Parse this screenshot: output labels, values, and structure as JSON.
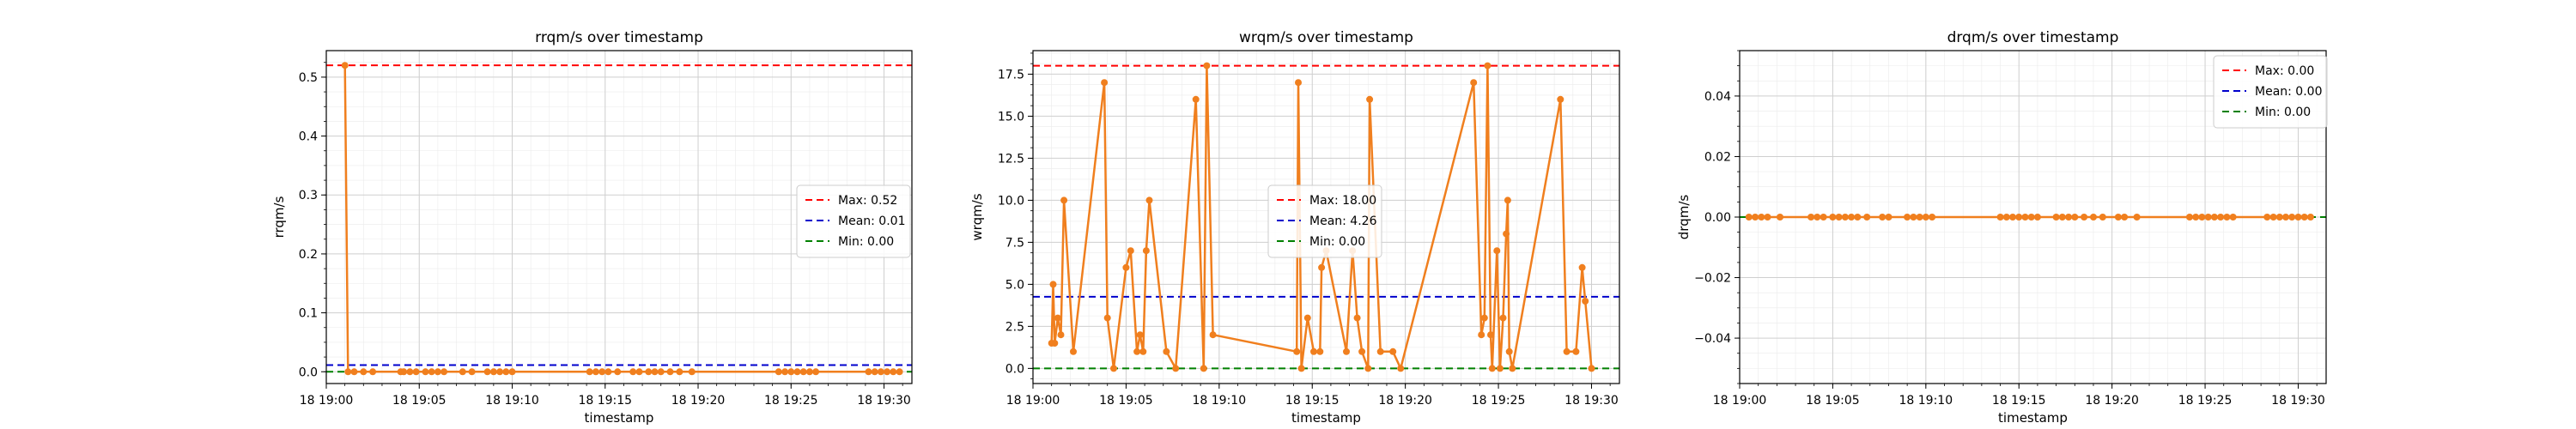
{
  "chart_data": [
    {
      "type": "line",
      "title": "rrqm/s over timestamp",
      "xlabel": "timestamp",
      "ylabel": "rrqm/s",
      "xlim": [
        "18 19:00:00",
        "18 19:31:30"
      ],
      "ylim": [
        -0.02,
        0.545
      ],
      "x_ticks": [
        {
          "t": "18 19:00:00",
          "label": "18 19:00"
        },
        {
          "t": "18 19:05:00",
          "label": "18 19:05"
        },
        {
          "t": "18 19:10:00",
          "label": "18 19:10"
        },
        {
          "t": "18 19:15:00",
          "label": "18 19:15"
        },
        {
          "t": "18 19:20:00",
          "label": "18 19:20"
        },
        {
          "t": "18 19:25:00",
          "label": "18 19:25"
        },
        {
          "t": "18 19:30:00",
          "label": "18 19:30"
        }
      ],
      "y_ticks": [
        {
          "v": 0.0,
          "label": "0.0"
        },
        {
          "v": 0.1,
          "label": "0.1"
        },
        {
          "v": 0.2,
          "label": "0.2"
        },
        {
          "v": 0.3,
          "label": "0.3"
        },
        {
          "v": 0.4,
          "label": "0.4"
        },
        {
          "v": 0.5,
          "label": "0.5"
        }
      ],
      "grid": true,
      "legend_position": "center-right",
      "series": [
        {
          "color": "#f07f1e",
          "x": [
            "18 19:01:00",
            "18 19:01:10",
            "18 19:01:30",
            "18 19:02:00",
            "18 19:02:30",
            "18 19:04:00",
            "18 19:04:10",
            "18 19:04:30",
            "18 19:04:50",
            "18 19:05:20",
            "18 19:05:40",
            "18 19:06:00",
            "18 19:06:20",
            "18 19:07:20",
            "18 19:07:50",
            "18 19:08:40",
            "18 19:09:00",
            "18 19:09:20",
            "18 19:09:40",
            "18 19:10:00",
            "18 19:14:10",
            "18 19:14:30",
            "18 19:14:50",
            "18 19:15:10",
            "18 19:15:40",
            "18 19:16:30",
            "18 19:16:50",
            "18 19:17:20",
            "18 19:17:40",
            "18 19:18:00",
            "18 19:18:30",
            "18 19:19:00",
            "18 19:19:40",
            "18 19:24:20",
            "18 19:24:40",
            "18 19:25:00",
            "18 19:25:20",
            "18 19:25:40",
            "18 19:26:00",
            "18 19:26:20",
            "18 19:29:10",
            "18 19:29:30",
            "18 19:29:50",
            "18 19:30:10",
            "18 19:30:30",
            "18 19:30:50"
          ],
          "y": [
            0.52,
            0,
            0,
            0,
            0,
            0,
            0,
            0,
            0,
            0,
            0,
            0,
            0,
            0,
            0,
            0,
            0,
            0,
            0,
            0,
            0,
            0,
            0,
            0,
            0,
            0,
            0,
            0,
            0,
            0,
            0,
            0,
            0,
            0,
            0,
            0,
            0,
            0,
            0,
            0,
            0,
            0,
            0,
            0,
            0,
            0
          ]
        }
      ],
      "reference_lines": [
        {
          "label": "Max: 0.52",
          "value": 0.52,
          "color": "#ff0000"
        },
        {
          "label": "Mean: 0.01",
          "value": 0.0113,
          "color": "#0000cc"
        },
        {
          "label": "Min: 0.00",
          "value": 0.0,
          "color": "#008000"
        }
      ]
    },
    {
      "type": "line",
      "title": "wrqm/s over timestamp",
      "xlabel": "timestamp",
      "ylabel": "wrqm/s",
      "xlim": [
        "18 19:00:00",
        "18 19:31:30"
      ],
      "ylim": [
        -0.9,
        18.9
      ],
      "x_ticks": [
        {
          "t": "18 19:00:00",
          "label": "18 19:00"
        },
        {
          "t": "18 19:05:00",
          "label": "18 19:05"
        },
        {
          "t": "18 19:10:00",
          "label": "18 19:10"
        },
        {
          "t": "18 19:15:00",
          "label": "18 19:15"
        },
        {
          "t": "18 19:20:00",
          "label": "18 19:20"
        },
        {
          "t": "18 19:25:00",
          "label": "18 19:25"
        },
        {
          "t": "18 19:30:00",
          "label": "18 19:30"
        }
      ],
      "y_ticks": [
        {
          "v": 0.0,
          "label": "0.0"
        },
        {
          "v": 2.5,
          "label": "2.5"
        },
        {
          "v": 5.0,
          "label": "5.0"
        },
        {
          "v": 7.5,
          "label": "7.5"
        },
        {
          "v": 10.0,
          "label": "10.0"
        },
        {
          "v": 12.5,
          "label": "12.5"
        },
        {
          "v": 15.0,
          "label": "15.0"
        },
        {
          "v": 17.5,
          "label": "17.5"
        }
      ],
      "grid": true,
      "legend_position": "center",
      "series": [
        {
          "color": "#f07f1e",
          "x": [
            "18 19:01:00",
            "18 19:01:05",
            "18 19:01:10",
            "18 19:01:20",
            "18 19:01:30",
            "18 19:01:40",
            "18 19:02:10",
            "18 19:03:50",
            "18 19:04:00",
            "18 19:04:20",
            "18 19:05:00",
            "18 19:05:15",
            "18 19:05:35",
            "18 19:05:45",
            "18 19:05:55",
            "18 19:06:05",
            "18 19:06:15",
            "18 19:07:10",
            "18 19:07:40",
            "18 19:08:45",
            "18 19:09:10",
            "18 19:09:20",
            "18 19:09:40",
            "18 19:14:10",
            "18 19:14:15",
            "18 19:14:25",
            "18 19:14:45",
            "18 19:15:05",
            "18 19:15:25",
            "18 19:15:30",
            "18 19:15:45",
            "18 19:16:50",
            "18 19:17:10",
            "18 19:17:25",
            "18 19:17:40",
            "18 19:18:00",
            "18 19:18:05",
            "18 19:18:40",
            "18 19:19:20",
            "18 19:19:45",
            "18 19:23:40",
            "18 19:24:05",
            "18 19:24:15",
            "18 19:24:25",
            "18 19:24:35",
            "18 19:24:40",
            "18 19:24:55",
            "18 19:25:05",
            "18 19:25:15",
            "18 19:25:25",
            "18 19:25:30",
            "18 19:25:35",
            "18 19:25:45",
            "18 19:28:20",
            "18 19:28:40",
            "18 19:29:10",
            "18 19:29:30",
            "18 19:29:40",
            "18 19:30:00"
          ],
          "y": [
            1.5,
            5,
            1.5,
            3,
            2,
            10,
            1,
            17,
            3,
            0,
            6,
            7,
            1,
            2,
            1,
            7,
            10,
            1,
            0,
            16,
            0,
            18,
            2,
            1,
            17,
            0,
            3,
            1,
            1,
            6,
            7,
            1,
            7,
            3,
            1,
            0,
            16,
            1,
            1,
            0,
            17,
            2,
            3,
            18,
            2,
            0,
            7,
            0,
            3,
            8,
            10,
            1,
            0,
            16,
            1,
            1,
            6,
            4,
            0
          ]
        }
      ],
      "reference_lines": [
        {
          "label": "Max: 18.00",
          "value": 18.0,
          "color": "#ff0000"
        },
        {
          "label": "Mean: 4.26",
          "value": 4.26,
          "color": "#0000cc"
        },
        {
          "label": "Min: 0.00",
          "value": 0.0,
          "color": "#008000"
        }
      ]
    },
    {
      "type": "line",
      "title": "drqm/s over timestamp",
      "xlabel": "timestamp",
      "ylabel": "drqm/s",
      "xlim": [
        "18 19:00:00",
        "18 19:31:30"
      ],
      "ylim": [
        -0.055,
        0.055
      ],
      "x_ticks": [
        {
          "t": "18 19:00:00",
          "label": "18 19:00"
        },
        {
          "t": "18 19:05:00",
          "label": "18 19:05"
        },
        {
          "t": "18 19:10:00",
          "label": "18 19:10"
        },
        {
          "t": "18 19:15:00",
          "label": "18 19:15"
        },
        {
          "t": "18 19:20:00",
          "label": "18 19:20"
        },
        {
          "t": "18 19:25:00",
          "label": "18 19:25"
        },
        {
          "t": "18 19:30:00",
          "label": "18 19:30"
        }
      ],
      "y_ticks": [
        {
          "v": -0.04,
          "label": "−0.04"
        },
        {
          "v": -0.02,
          "label": "−0.02"
        },
        {
          "v": 0.0,
          "label": "0.00"
        },
        {
          "v": 0.02,
          "label": "0.02"
        },
        {
          "v": 0.04,
          "label": "0.04"
        }
      ],
      "grid": true,
      "legend_position": "top-right",
      "series": [
        {
          "color": "#f07f1e",
          "x": [
            "18 19:00:30",
            "18 19:00:50",
            "18 19:01:10",
            "18 19:01:30",
            "18 19:02:10",
            "18 19:03:50",
            "18 19:04:10",
            "18 19:04:30",
            "18 19:05:00",
            "18 19:05:20",
            "18 19:05:40",
            "18 19:06:00",
            "18 19:06:20",
            "18 19:06:50",
            "18 19:07:40",
            "18 19:08:00",
            "18 19:09:00",
            "18 19:09:20",
            "18 19:09:40",
            "18 19:10:00",
            "18 19:10:20",
            "18 19:14:00",
            "18 19:14:20",
            "18 19:14:40",
            "18 19:15:00",
            "18 19:15:20",
            "18 19:15:40",
            "18 19:16:00",
            "18 19:17:00",
            "18 19:17:20",
            "18 19:17:40",
            "18 19:18:00",
            "18 19:18:30",
            "18 19:19:00",
            "18 19:19:30",
            "18 19:20:20",
            "18 19:20:40",
            "18 19:21:20",
            "18 19:24:10",
            "18 19:24:30",
            "18 19:24:50",
            "18 19:25:10",
            "18 19:25:30",
            "18 19:25:50",
            "18 19:26:10",
            "18 19:26:30",
            "18 19:28:20",
            "18 19:28:40",
            "18 19:29:00",
            "18 19:29:20",
            "18 19:29:40",
            "18 19:30:00",
            "18 19:30:20",
            "18 19:30:40"
          ],
          "y": [
            0,
            0,
            0,
            0,
            0,
            0,
            0,
            0,
            0,
            0,
            0,
            0,
            0,
            0,
            0,
            0,
            0,
            0,
            0,
            0,
            0,
            0,
            0,
            0,
            0,
            0,
            0,
            0,
            0,
            0,
            0,
            0,
            0,
            0,
            0,
            0,
            0,
            0,
            0,
            0,
            0,
            0,
            0,
            0,
            0,
            0,
            0,
            0,
            0,
            0,
            0,
            0,
            0,
            0
          ]
        }
      ],
      "reference_lines": [
        {
          "label": "Max: 0.00",
          "value": 0.0,
          "color": "#ff0000"
        },
        {
          "label": "Mean: 0.00",
          "value": 0.0,
          "color": "#0000cc"
        },
        {
          "label": "Min: 0.00",
          "value": 0.0,
          "color": "#008000"
        }
      ]
    }
  ]
}
